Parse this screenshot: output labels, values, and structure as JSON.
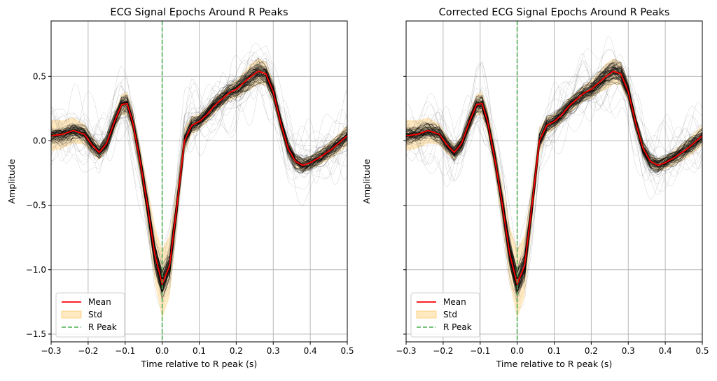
{
  "chart_data": [
    {
      "type": "line",
      "title": "ECG Signal Epochs Around R Peaks",
      "xlabel": "Time relative to R peak (s)",
      "ylabel": "Amplitude",
      "xlim": [
        -0.3,
        0.5
      ],
      "ylim": [
        -1.56,
        0.93
      ],
      "xticks": [
        -0.3,
        -0.2,
        -0.1,
        0.0,
        0.1,
        0.2,
        0.3,
        0.4,
        0.5
      ],
      "xtick_labels": [
        "−0.3",
        "−0.2",
        "−0.1",
        "0.0",
        "0.1",
        "0.2",
        "0.3",
        "0.4",
        "0.5"
      ],
      "yticks": [
        -1.5,
        -1.0,
        -0.5,
        0.0,
        0.5
      ],
      "ytick_labels": [
        "−1.5",
        "−1.0",
        "−0.5",
        "0.0",
        "0.5"
      ],
      "grid": true,
      "legend_position": "lower-left",
      "series": [
        {
          "name": "Mean",
          "color": "#ff0000",
          "x": [
            -0.3,
            -0.27,
            -0.24,
            -0.21,
            -0.19,
            -0.17,
            -0.15,
            -0.13,
            -0.11,
            -0.095,
            -0.08,
            -0.06,
            -0.04,
            -0.02,
            0.0,
            0.02,
            0.04,
            0.06,
            0.08,
            0.1,
            0.12,
            0.14,
            0.16,
            0.18,
            0.2,
            0.22,
            0.24,
            0.26,
            0.28,
            0.3,
            0.32,
            0.34,
            0.36,
            0.38,
            0.4,
            0.43,
            0.46,
            0.5
          ],
          "y": [
            0.04,
            0.05,
            0.08,
            0.05,
            -0.03,
            -0.09,
            -0.02,
            0.14,
            0.28,
            0.29,
            0.15,
            -0.15,
            -0.5,
            -0.88,
            -1.11,
            -0.97,
            -0.5,
            0.0,
            0.12,
            0.15,
            0.2,
            0.27,
            0.32,
            0.37,
            0.4,
            0.45,
            0.5,
            0.54,
            0.52,
            0.38,
            0.14,
            -0.06,
            -0.16,
            -0.19,
            -0.17,
            -0.12,
            -0.06,
            0.04
          ]
        },
        {
          "name": "Std",
          "color": "#ffc04d",
          "band_width": [
            0.12,
            0.11,
            0.1,
            0.08,
            0.07,
            0.06,
            0.06,
            0.07,
            0.08,
            0.09,
            0.1,
            0.12,
            0.16,
            0.22,
            0.27,
            0.24,
            0.16,
            0.1,
            0.07,
            0.06,
            0.06,
            0.06,
            0.06,
            0.06,
            0.07,
            0.08,
            0.1,
            0.1,
            0.09,
            0.08,
            0.07,
            0.06,
            0.05,
            0.05,
            0.05,
            0.06,
            0.07,
            0.08
          ]
        },
        {
          "name": "R Peak",
          "color": "#4caf50",
          "x_value": 0.0
        }
      ],
      "epoch_line_color": "#000000"
    },
    {
      "type": "line",
      "title": "Corrected ECG Signal Epochs Around R Peaks",
      "xlabel": "Time relative to R peak (s)",
      "ylabel": "Amplitude",
      "xlim": [
        -0.3,
        0.5
      ],
      "ylim": [
        -1.56,
        0.93
      ],
      "xticks": [
        -0.3,
        -0.2,
        -0.1,
        0.0,
        0.1,
        0.2,
        0.3,
        0.4,
        0.5
      ],
      "xtick_labels": [
        "−0.3",
        "−0.2",
        "−0.1",
        "0.0",
        "0.1",
        "0.2",
        "0.3",
        "0.4",
        "0.5"
      ],
      "yticks": [
        -1.5,
        -1.0,
        -0.5,
        0.0,
        0.5
      ],
      "ytick_labels": [
        "",
        "",
        "",
        "",
        ""
      ],
      "grid": true,
      "legend_position": "lower-left",
      "series": [
        {
          "name": "Mean",
          "color": "#ff0000",
          "x": [
            -0.3,
            -0.27,
            -0.24,
            -0.21,
            -0.19,
            -0.17,
            -0.15,
            -0.13,
            -0.11,
            -0.095,
            -0.08,
            -0.06,
            -0.04,
            -0.02,
            0.0,
            0.02,
            0.04,
            0.06,
            0.08,
            0.1,
            0.12,
            0.14,
            0.16,
            0.18,
            0.2,
            0.22,
            0.24,
            0.26,
            0.28,
            0.3,
            0.32,
            0.34,
            0.36,
            0.38,
            0.4,
            0.43,
            0.46,
            0.5
          ],
          "y": [
            0.04,
            0.05,
            0.08,
            0.05,
            -0.03,
            -0.09,
            -0.02,
            0.14,
            0.28,
            0.29,
            0.15,
            -0.15,
            -0.5,
            -0.88,
            -1.11,
            -0.97,
            -0.5,
            0.0,
            0.12,
            0.15,
            0.2,
            0.27,
            0.32,
            0.37,
            0.4,
            0.45,
            0.5,
            0.54,
            0.52,
            0.38,
            0.14,
            -0.06,
            -0.16,
            -0.19,
            -0.17,
            -0.12,
            -0.06,
            0.04
          ]
        },
        {
          "name": "Std",
          "color": "#ffc04d",
          "band_width": [
            0.12,
            0.11,
            0.1,
            0.08,
            0.07,
            0.06,
            0.06,
            0.07,
            0.08,
            0.09,
            0.1,
            0.12,
            0.16,
            0.22,
            0.27,
            0.24,
            0.16,
            0.1,
            0.07,
            0.06,
            0.06,
            0.06,
            0.06,
            0.06,
            0.07,
            0.08,
            0.1,
            0.1,
            0.09,
            0.08,
            0.07,
            0.06,
            0.05,
            0.05,
            0.05,
            0.06,
            0.07,
            0.08
          ]
        },
        {
          "name": "R Peak",
          "color": "#4caf50",
          "x_value": 0.0
        }
      ],
      "epoch_line_color": "#000000"
    }
  ]
}
